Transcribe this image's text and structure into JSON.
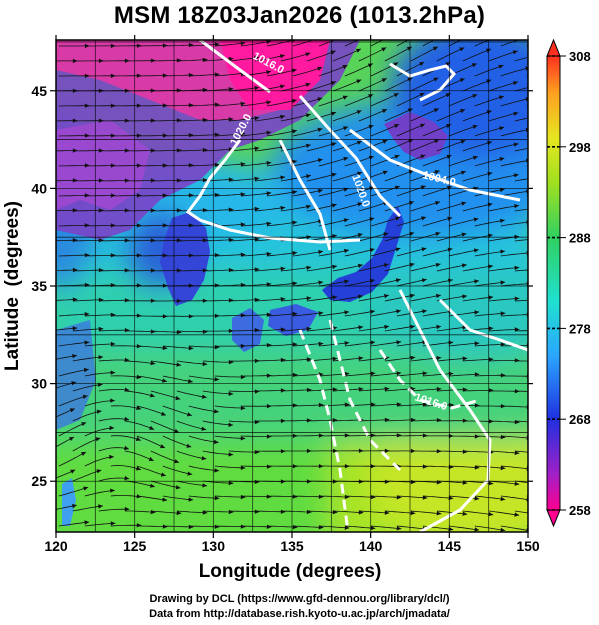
{
  "title": "MSM 18Z03Jan2026 (1013.2hPa)",
  "axes": {
    "xlabel": "Longitude (degrees)",
    "ylabel": "Latitude  (degrees)",
    "x_ticks": [
      "120",
      "125",
      "130",
      "135",
      "140",
      "145",
      "150"
    ],
    "y_ticks": [
      "25",
      "30",
      "35",
      "40",
      "45"
    ],
    "xlim": [
      120,
      150
    ],
    "ylim": [
      22.4,
      47.6
    ]
  },
  "colorbar": {
    "ticks": [
      "308",
      "298",
      "288",
      "278",
      "268",
      "258"
    ],
    "range": [
      258,
      308
    ],
    "colors": [
      "#ff0090",
      "#a020c8",
      "#2030e0",
      "#2aa6ff",
      "#20e0d0",
      "#30d060",
      "#a0e020",
      "#e6e620",
      "#ff9f20",
      "#ff3020"
    ]
  },
  "contour_labels": [
    "1016.0",
    "1020.0",
    "1020.0",
    "1004.0",
    "1016.0"
  ],
  "footer": {
    "line1": "Drawing by DCL (https://www.gfd-dennou.org/library/dcl/)",
    "line2": "Data from http://database.rish.kyoto-u.ac.jp/arch/jmadata/"
  }
}
